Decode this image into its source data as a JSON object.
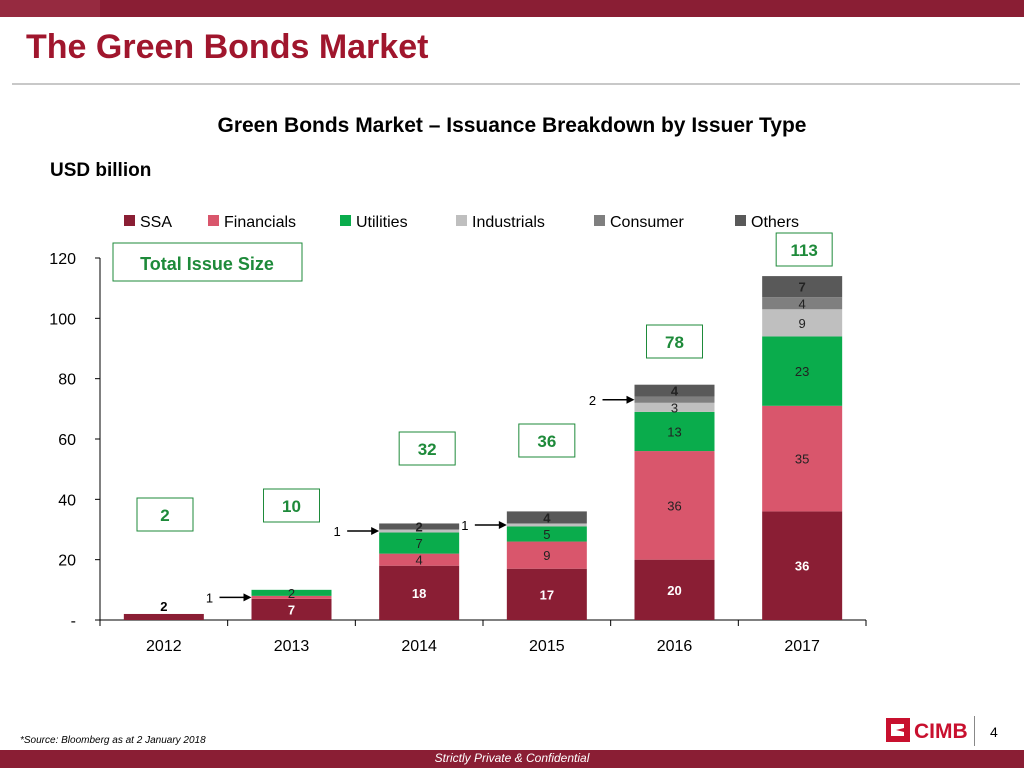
{
  "page": {
    "title": "The Green Bonds Market",
    "footnote": "*Source: Bloomberg as at 2 January 2018",
    "page_number": "4",
    "confidential": "Strictly Private & Confidential",
    "logo_text": "CIMB"
  },
  "chart_data": {
    "type": "bar",
    "stacked": true,
    "title": "Green Bonds Market – Issuance Breakdown by Issuer Type",
    "ylabel": "USD billion",
    "ylim": [
      0,
      120
    ],
    "yticks": [
      {
        "value": 0,
        "label": "-"
      },
      {
        "value": 20,
        "label": "20"
      },
      {
        "value": 40,
        "label": "40"
      },
      {
        "value": 60,
        "label": "60"
      },
      {
        "value": 80,
        "label": "80"
      },
      {
        "value": 100,
        "label": "100"
      },
      {
        "value": 120,
        "label": "120"
      }
    ],
    "legend_position": "top",
    "total_legend_label": "Total Issue Size",
    "categories": [
      "2012",
      "2013",
      "2014",
      "2015",
      "2016",
      "2017"
    ],
    "totals": [
      "2",
      "10",
      "32",
      "36",
      "78",
      "113"
    ],
    "series": [
      {
        "name": "SSA",
        "color": "#8a1e34",
        "values": [
          2,
          7,
          18,
          17,
          20,
          36
        ]
      },
      {
        "name": "Financials",
        "color": "#d9566c",
        "values": [
          0,
          1,
          4,
          9,
          36,
          35
        ]
      },
      {
        "name": "Utilities",
        "color": "#0aac4c",
        "values": [
          0,
          2,
          7,
          5,
          13,
          23
        ]
      },
      {
        "name": "Industrials",
        "color": "#bfbfbf",
        "values": [
          0,
          0,
          1,
          1,
          3,
          9
        ]
      },
      {
        "name": "Consumer",
        "color": "#7f7f7f",
        "values": [
          0,
          0,
          0,
          0,
          2,
          4
        ]
      },
      {
        "name": "Others",
        "color": "#595959",
        "values": [
          0,
          0,
          2,
          4,
          4,
          7
        ]
      }
    ],
    "data_labels": [
      {
        "cat": 0,
        "series": 0,
        "text": "2"
      },
      {
        "cat": 1,
        "series": 0,
        "text": "7"
      },
      {
        "cat": 1,
        "series": 1,
        "text": "1",
        "arrow": true
      },
      {
        "cat": 1,
        "series": 2,
        "text": "2"
      },
      {
        "cat": 2,
        "series": 0,
        "text": "18"
      },
      {
        "cat": 2,
        "series": 1,
        "text": "4"
      },
      {
        "cat": 2,
        "series": 2,
        "text": "7"
      },
      {
        "cat": 2,
        "series": 3,
        "text": "1",
        "arrow": true
      },
      {
        "cat": 2,
        "series": 5,
        "text": "2"
      },
      {
        "cat": 3,
        "series": 0,
        "text": "17"
      },
      {
        "cat": 3,
        "series": 1,
        "text": "9"
      },
      {
        "cat": 3,
        "series": 2,
        "text": "5"
      },
      {
        "cat": 3,
        "series": 3,
        "text": "1",
        "arrow": true
      },
      {
        "cat": 3,
        "series": 5,
        "text": "4"
      },
      {
        "cat": 4,
        "series": 0,
        "text": "20"
      },
      {
        "cat": 4,
        "series": 1,
        "text": "36"
      },
      {
        "cat": 4,
        "series": 2,
        "text": "13"
      },
      {
        "cat": 4,
        "series": 3,
        "text": "3"
      },
      {
        "cat": 4,
        "series": 4,
        "text": "2",
        "arrow": true
      },
      {
        "cat": 4,
        "series": 5,
        "text": "4"
      },
      {
        "cat": 5,
        "series": 0,
        "text": "36"
      },
      {
        "cat": 5,
        "series": 1,
        "text": "35"
      },
      {
        "cat": 5,
        "series": 2,
        "text": "23"
      },
      {
        "cat": 5,
        "series": 3,
        "text": "9"
      },
      {
        "cat": 5,
        "series": 4,
        "text": "4"
      },
      {
        "cat": 5,
        "series": 5,
        "text": "7"
      }
    ]
  }
}
